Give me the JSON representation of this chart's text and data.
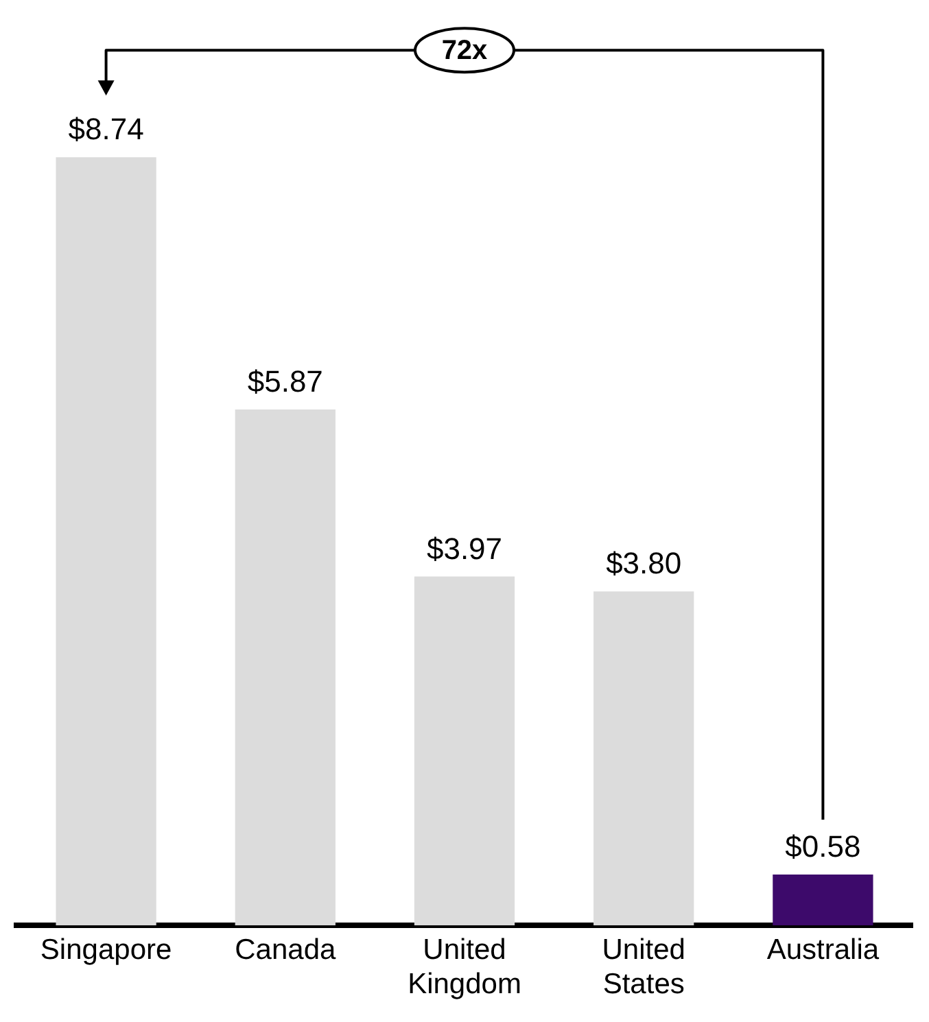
{
  "chart_data": {
    "type": "bar",
    "categories": [
      "Singapore",
      "Canada",
      "United Kingdom",
      "United States",
      "Australia"
    ],
    "values": [
      8.74,
      5.87,
      3.97,
      3.8,
      0.58
    ],
    "colors": [
      "#dcdcdc",
      "#dcdcdc",
      "#dcdcdc",
      "#dcdcdc",
      "#3d0a6b"
    ],
    "value_labels": [
      "$8.74",
      "$5.87",
      "$3.97",
      "$3.80",
      "$0.58"
    ],
    "annotations": [
      "72x"
    ],
    "grid": false,
    "legend": false
  }
}
